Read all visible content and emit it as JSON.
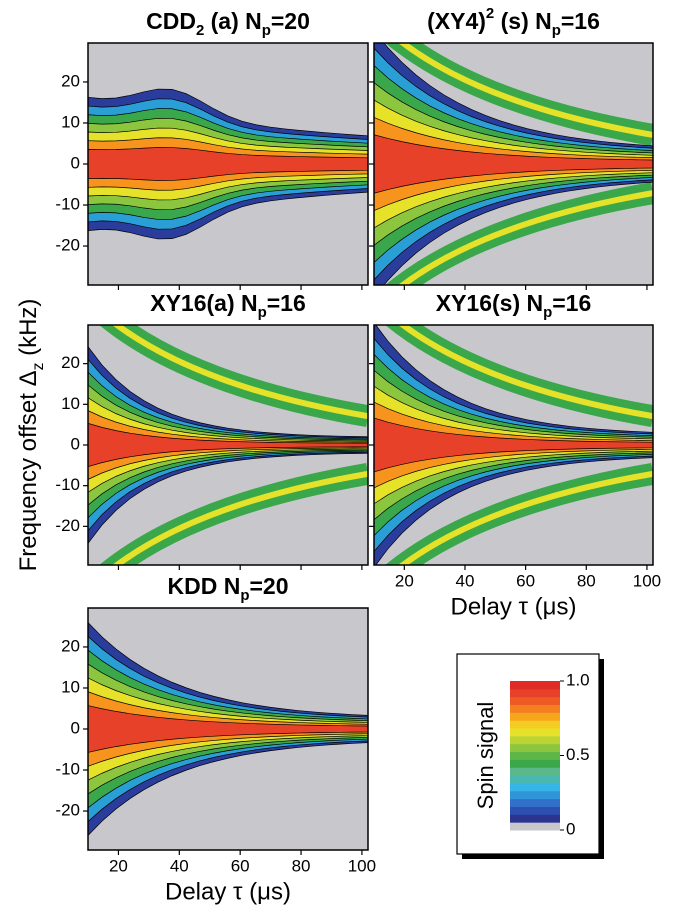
{
  "chart_data": [
    {
      "type": "contour",
      "title_parts": [
        {
          "text": "CDD"
        },
        {
          "text": "2",
          "style": "sub"
        },
        {
          "text": " (a) N"
        },
        {
          "text": "p",
          "style": "sub"
        },
        {
          "text": "=20"
        }
      ],
      "xlim": [
        10,
        102
      ],
      "ylim": [
        -29.5,
        29.5
      ],
      "xticks": [
        20,
        40,
        60,
        80,
        100
      ],
      "yticks": [
        -20,
        -10,
        0,
        10,
        20
      ],
      "xtick_labels": false,
      "ytick_labels": true
    },
    {
      "type": "contour",
      "title_parts": [
        {
          "text": "(XY4)"
        },
        {
          "text": "2",
          "style": "sup"
        },
        {
          "text": " (s) N"
        },
        {
          "text": "p",
          "style": "sub"
        },
        {
          "text": "=16"
        }
      ],
      "xlim": [
        10,
        102
      ],
      "ylim": [
        -29.5,
        29.5
      ],
      "xticks": [
        20,
        40,
        60,
        80,
        100
      ],
      "yticks": [
        -20,
        -10,
        0,
        10,
        20
      ],
      "xtick_labels": false,
      "ytick_labels": false
    },
    {
      "type": "contour",
      "title_parts": [
        {
          "text": "XY16(a) N"
        },
        {
          "text": "p",
          "style": "sub"
        },
        {
          "text": "=16"
        }
      ],
      "xlim": [
        10,
        102
      ],
      "ylim": [
        -29.5,
        29.5
      ],
      "xticks": [
        20,
        40,
        60,
        80,
        100
      ],
      "yticks": [
        -20,
        -10,
        0,
        10,
        20
      ],
      "xtick_labels": false,
      "ytick_labels": true,
      "y_label_parts": [
        {
          "text": "Frequency offset Δ"
        },
        {
          "text": "z",
          "style": "sub"
        },
        {
          "text": " (kHz)"
        }
      ]
    },
    {
      "type": "contour",
      "title_parts": [
        {
          "text": "XY16(s) N"
        },
        {
          "text": "p",
          "style": "sub"
        },
        {
          "text": "=16"
        }
      ],
      "xlim": [
        10,
        102
      ],
      "ylim": [
        -29.5,
        29.5
      ],
      "xticks": [
        20,
        40,
        60,
        80,
        100
      ],
      "yticks": [
        -20,
        -10,
        0,
        10,
        20
      ],
      "xtick_labels": true,
      "ytick_labels": false,
      "x_label": "Delay τ (μs)"
    },
    {
      "type": "contour",
      "title_parts": [
        {
          "text": "KDD N"
        },
        {
          "text": "p",
          "style": "sub"
        },
        {
          "text": "=20"
        }
      ],
      "xlim": [
        10,
        102
      ],
      "ylim": [
        -29.5,
        29.5
      ],
      "xticks": [
        20,
        40,
        60,
        80,
        100
      ],
      "yticks": [
        -20,
        -10,
        0,
        10,
        20
      ],
      "xtick_labels": true,
      "ytick_labels": true,
      "x_label": "Delay τ (μs)"
    },
    {
      "type": "colorbar",
      "title": "Spin signal",
      "lim": [
        0,
        1
      ],
      "ticks": [
        0,
        0.5,
        {
          "value": 1,
          "label": "1.0"
        }
      ],
      "colors": [
        "#c8c8cc",
        "#2b3590",
        "#2d4fb0",
        "#3070c8",
        "#2f95d8",
        "#35b6e6",
        "#4ab8b0",
        "#5bb88a",
        "#3aa84a",
        "#5cb746",
        "#8cc63f",
        "#b9d433",
        "#e6e22a",
        "#f5cd22",
        "#f7a51d",
        "#f47f20",
        "#ee5a24",
        "#e8412a",
        "#e02a26"
      ]
    }
  ]
}
